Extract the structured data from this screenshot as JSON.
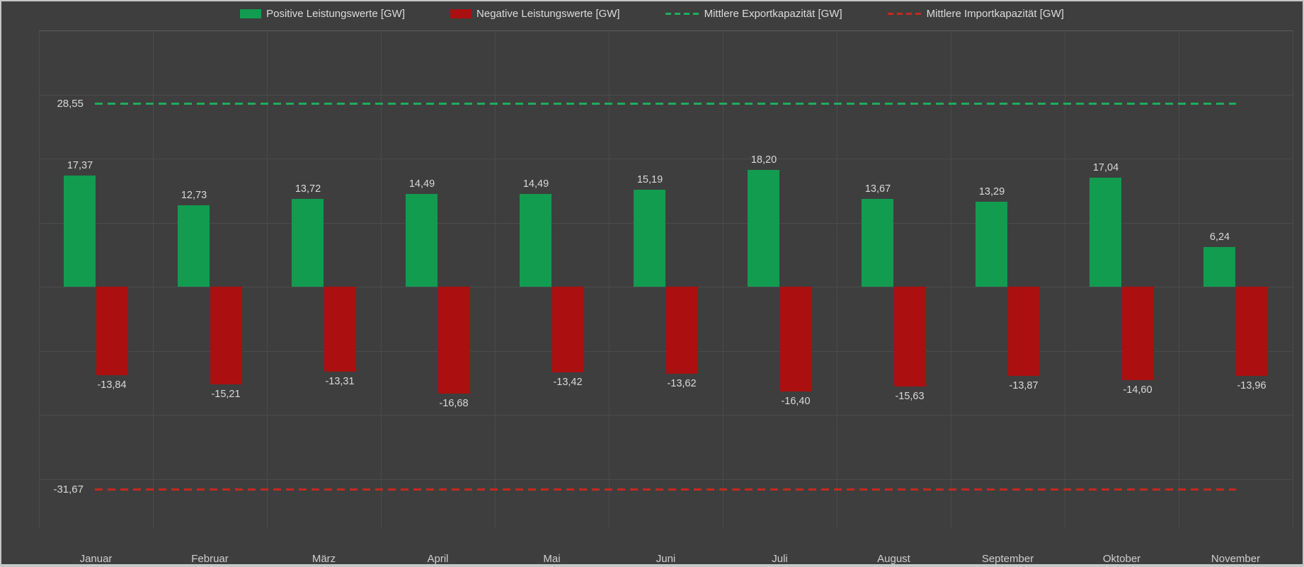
{
  "colors": {
    "background": "#3e3e3e",
    "gridline": "#4b4b4b",
    "plot_border_top": "#5c5c5c",
    "text": "#d9d9d9",
    "window_border": "#c6c6c6",
    "window_bottom_edge": "#c2cccb",
    "positive_bar": "#119c50",
    "negative_bar": "#ab0f0f",
    "export_line": "#1ead5c",
    "import_line": "#c8281e"
  },
  "chart_data": {
    "type": "bar",
    "title": "",
    "xlabel": "",
    "ylabel": "",
    "unit": "GW",
    "decimal_separator": ",",
    "grid": true,
    "legend_position": "top-center",
    "ylim": [
      -40,
      40
    ],
    "gridline_step": 10,
    "categories": [
      "Januar",
      "Februar",
      "März",
      "April",
      "Mai",
      "Juni",
      "Juli",
      "August",
      "September",
      "Oktober",
      "November"
    ],
    "series": [
      {
        "name": "Positive Leistungswerte [GW]",
        "color": "#119c50",
        "values": [
          17.37,
          12.73,
          13.72,
          14.49,
          14.49,
          15.19,
          18.2,
          13.67,
          13.29,
          17.04,
          6.24
        ]
      },
      {
        "name": "Negative Leistungswerte [GW]",
        "color": "#ab0f0f",
        "values": [
          -13.84,
          -15.21,
          -13.31,
          -16.68,
          -13.42,
          -13.62,
          -16.4,
          -15.63,
          -13.87,
          -14.6,
          -13.96
        ]
      }
    ],
    "reference_lines": [
      {
        "name": "Mittlere Exportkapazität [GW]",
        "value": 28.55,
        "label": "28,55",
        "color": "#1ead5c",
        "style": "dashed"
      },
      {
        "name": "Mittlere Importkapazität [GW]",
        "value": -31.67,
        "label": "-31,67",
        "color": "#c8281e",
        "style": "dashed"
      }
    ],
    "legend": [
      {
        "label": "Positive Leistungswerte [GW]",
        "marker": "rect",
        "color": "#119c50"
      },
      {
        "label": "Negative Leistungswerte [GW]",
        "marker": "rect",
        "color": "#ab0f0f"
      },
      {
        "label": "Mittlere Exportkapazität [GW]",
        "marker": "dashed-line",
        "color": "#1ead5c"
      },
      {
        "label": "Mittlere Importkapazität [GW]",
        "marker": "dashed-line",
        "color": "#c8281e"
      }
    ]
  }
}
